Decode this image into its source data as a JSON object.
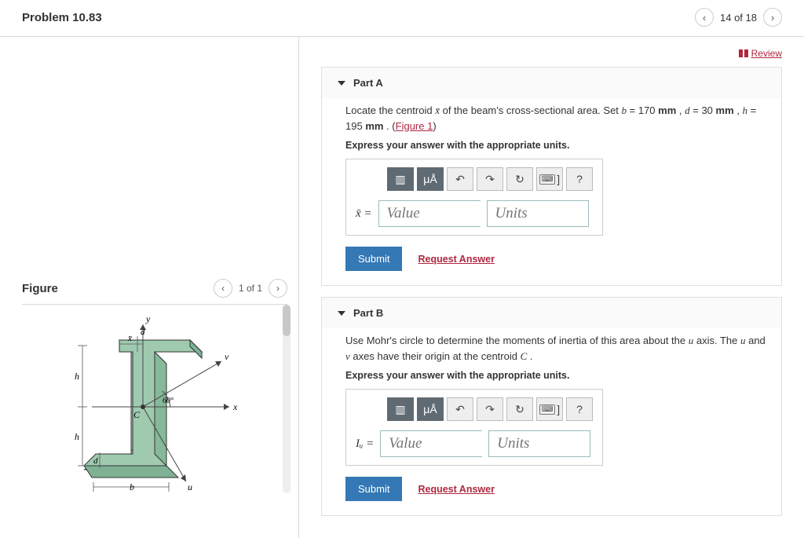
{
  "header": {
    "title": "Problem 10.83",
    "page_indicator": "14 of 18"
  },
  "review_label": "Review",
  "figure_panel": {
    "title": "Figure",
    "page_indicator": "1 of 1",
    "diagram": {
      "type": "engineering-cross-section",
      "labels": [
        "x",
        "y",
        "u",
        "v",
        "b",
        "d",
        "h",
        "C",
        "x̄"
      ],
      "angle_label": "60°",
      "fill_color": "#9fcab0",
      "edge_color": "#333333",
      "axis_color": "#444444",
      "dim_line_color": "#555555"
    }
  },
  "parts": [
    {
      "key": "A",
      "heading": "Part A",
      "prompt_html": "Locate the centroid <span class='mi'>x̄</span> of the beam's cross-sectional area. Set <span class='mi'>b</span> = 170 <b>mm</b> , <span class='mi'>d</span> = 30 <b>mm</b> , <span class='mi'>h</span> = 195 <b>mm</b> .",
      "figure_link": "Figure 1",
      "instruction": "Express your answer with the appropriate units.",
      "variable_label": "x̄ =",
      "value_placeholder": "Value",
      "units_placeholder": "Units",
      "submit_label": "Submit",
      "request_label": "Request Answer"
    },
    {
      "key": "B",
      "heading": "Part B",
      "prompt_html": "Use Mohr's circle to determine the moments of inertia of this area about the <span class='mi'>u</span> axis. The <span class='mi'>u</span> and <span class='mi'>v</span> axes have their origin at the centroid <span class='mi'>C</span> .",
      "figure_link": "",
      "instruction": "Express your answer with the appropriate units.",
      "variable_label": "Iᵤ =",
      "value_placeholder": "Value",
      "units_placeholder": "Units",
      "submit_label": "Submit",
      "request_label": "Request Answer"
    }
  ],
  "toolbar": {
    "buttons": [
      {
        "name": "templates-icon",
        "glyph": "▥",
        "primary": true
      },
      {
        "name": "units-symbol-icon",
        "glyph": "μÅ",
        "primary": true
      },
      {
        "name": "undo-icon",
        "glyph": "↶",
        "primary": false
      },
      {
        "name": "redo-icon",
        "glyph": "↷",
        "primary": false
      },
      {
        "name": "reset-icon",
        "glyph": "↻",
        "primary": false
      },
      {
        "name": "keyboard-icon",
        "glyph": "⌨ ]",
        "primary": false
      },
      {
        "name": "help-icon",
        "glyph": "?",
        "primary": false
      }
    ]
  }
}
